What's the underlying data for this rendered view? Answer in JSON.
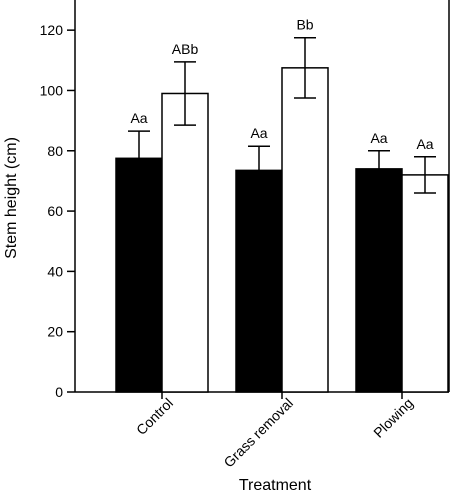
{
  "chart_data": {
    "type": "bar",
    "xlabel": "Treatment",
    "ylabel": "Stem height (cm)",
    "ylim": [
      0,
      130
    ],
    "yticks": [
      0,
      20,
      40,
      60,
      80,
      100,
      120
    ],
    "categories": [
      "Control",
      "Grass removal",
      "Plowing"
    ],
    "series": [
      {
        "fill": "#000000",
        "values": [
          77.5,
          73.5,
          74
        ],
        "errors": [
          9,
          8,
          6
        ],
        "labels": [
          "Aa",
          "Aa",
          "Aa"
        ]
      },
      {
        "fill": "#ffffff",
        "values": [
          99,
          107.5,
          72
        ],
        "errors": [
          10.5,
          10,
          6
        ],
        "labels": [
          "ABb",
          "Bb",
          "Aa"
        ]
      }
    ],
    "grid": false,
    "legend": "none"
  }
}
